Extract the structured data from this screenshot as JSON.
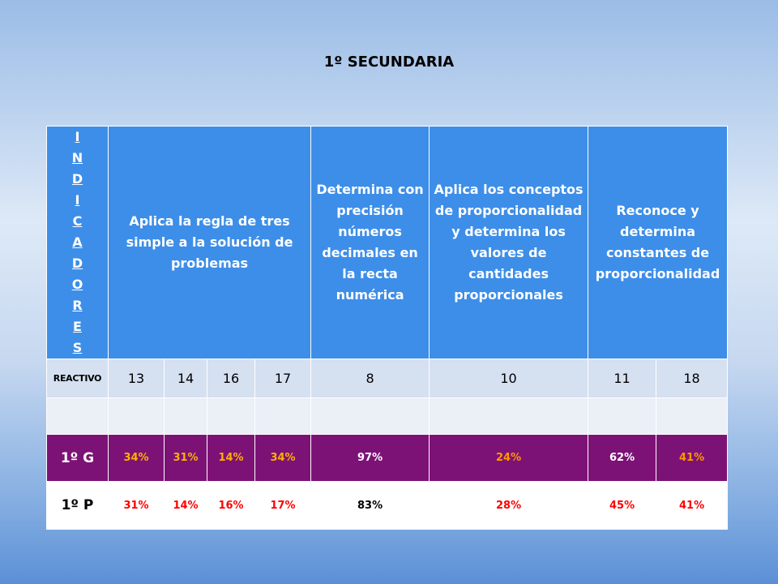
{
  "title": "1º SECUNDARIA",
  "header": {
    "indicadores_letters": [
      "I",
      "N",
      "D",
      "I",
      "C",
      "A",
      "D",
      "O",
      "R",
      "E",
      "S"
    ],
    "columns": [
      "Aplica la regla de tres simple a la solución de problemas",
      "Determina con precisión números decimales en la recta numérica",
      "Aplica los conceptos de proporcionalidad y determina los valores de cantidades proporcionales",
      "Reconoce y determina constantes de proporcionalidad"
    ]
  },
  "reactivo": {
    "label": "REACTIVO",
    "values": [
      "13",
      "14",
      "16",
      "17",
      "8",
      "10",
      "11",
      "18"
    ]
  },
  "rows": [
    {
      "label": "1º G",
      "values": [
        "34%",
        "31%",
        "14%",
        "34%",
        "97%",
        "24%",
        "62%",
        "41%"
      ]
    },
    {
      "label": "1º P",
      "values": [
        "31%",
        "14%",
        "16%",
        "17%",
        "83%",
        "28%",
        "45%",
        "41%"
      ]
    }
  ],
  "colors": {
    "header_blue": "#3d8ee8",
    "row_g_bg": "#7d1276",
    "orange": "#ffb000",
    "red": "#ff0000"
  }
}
